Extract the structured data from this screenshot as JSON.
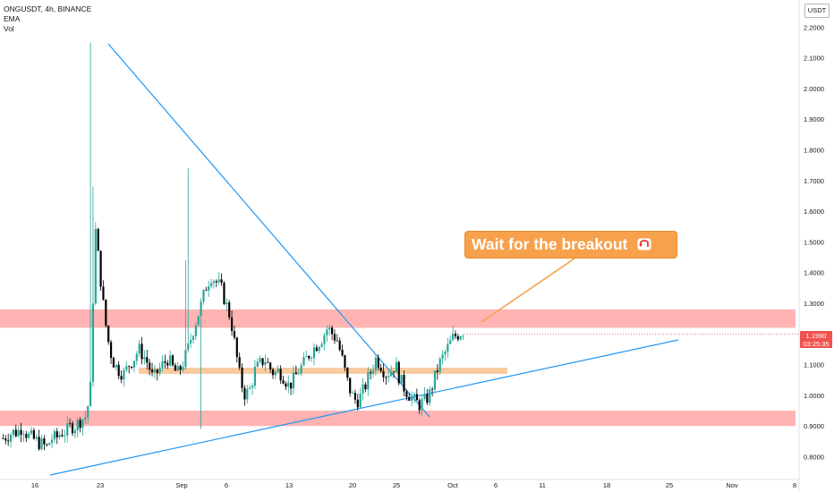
{
  "legend": {
    "symbol_line": "ONGUSDT, 4h, BINANCE",
    "indicator_1": "EMA",
    "indicator_2": "Vol"
  },
  "currency": "USDT",
  "last_price": {
    "value": "1.1990",
    "countdown": "03:25:35",
    "color": "#ef5350"
  },
  "callout": {
    "text": "Wait for the breakout",
    "icon": "u-turn-arrow-emoji"
  },
  "colors": {
    "bull": "#26a69a",
    "bear": "#000000",
    "trendline": "#2196f3",
    "resistance_zone": "#ffb3b3",
    "support_zone": "#f8cba0",
    "callout_bg": "#f7a14c"
  },
  "chart_data": {
    "type": "candlestick",
    "title": "ONGUSDT, 4h, BINANCE",
    "ylim": [
      0.75,
      2.25
    ],
    "y_ticks": [
      "2.2000",
      "2.1000",
      "2.0000",
      "1.9000",
      "1.8000",
      "1.7000",
      "1.6000",
      "1.5000",
      "1.4000",
      "1.3000",
      "1.1000",
      "1.0000",
      "0.9000",
      "0.8000"
    ],
    "x_ticks": [
      "16",
      "23",
      "Sep",
      "6",
      "13",
      "20",
      "25",
      "Oct",
      "6",
      "11",
      "18",
      "25",
      "Nov",
      "8"
    ],
    "price_path": [
      [
        0.86,
        0.87
      ],
      [
        0.88,
        0.88
      ],
      [
        0.9,
        0.87
      ],
      [
        0.86,
        0.85
      ],
      [
        0.84,
        0.83
      ],
      [
        0.86,
        0.86
      ],
      [
        0.88,
        0.88
      ],
      [
        0.9,
        0.9
      ],
      [
        0.92,
        0.93
      ],
      [
        1.0,
        1.55
      ],
      [
        1.4,
        1.25
      ],
      [
        1.15,
        1.1
      ],
      [
        1.08,
        1.07
      ],
      [
        1.1,
        1.12
      ],
      [
        1.15,
        1.13
      ],
      [
        1.1,
        1.05
      ],
      [
        1.08,
        1.1
      ],
      [
        1.12,
        1.09
      ],
      [
        1.07,
        1.1
      ],
      [
        1.14,
        1.2
      ],
      [
        1.25,
        1.3
      ],
      [
        1.36,
        1.39
      ],
      [
        1.37,
        1.35
      ],
      [
        1.3,
        1.25
      ],
      [
        1.15,
        1.05
      ],
      [
        1.0,
        1.02
      ],
      [
        1.08,
        1.1
      ],
      [
        1.12,
        1.09
      ],
      [
        1.07,
        1.08
      ],
      [
        1.06,
        1.03
      ],
      [
        1.05,
        1.08
      ],
      [
        1.1,
        1.13
      ],
      [
        1.15,
        1.17
      ],
      [
        1.19,
        1.22
      ],
      [
        1.2,
        1.18
      ],
      [
        1.12,
        1.05
      ],
      [
        1.0,
        0.98
      ],
      [
        1.0,
        1.04
      ],
      [
        1.08,
        1.12
      ],
      [
        1.1,
        1.07
      ],
      [
        1.08,
        1.1
      ],
      [
        1.05,
        1.02
      ],
      [
        1.0,
        0.98
      ],
      [
        0.97,
        0.98
      ],
      [
        1.0,
        1.05
      ],
      [
        1.1,
        1.13
      ],
      [
        1.16,
        1.19
      ],
      [
        1.2,
        1.21
      ]
    ],
    "zones": [
      {
        "name": "resistance",
        "from": 1.22,
        "to": 1.28
      },
      {
        "name": "mid",
        "from": 1.07,
        "to": 1.09
      },
      {
        "name": "support",
        "from": 0.9,
        "to": 0.95
      }
    ],
    "last_price": 1.199
  }
}
